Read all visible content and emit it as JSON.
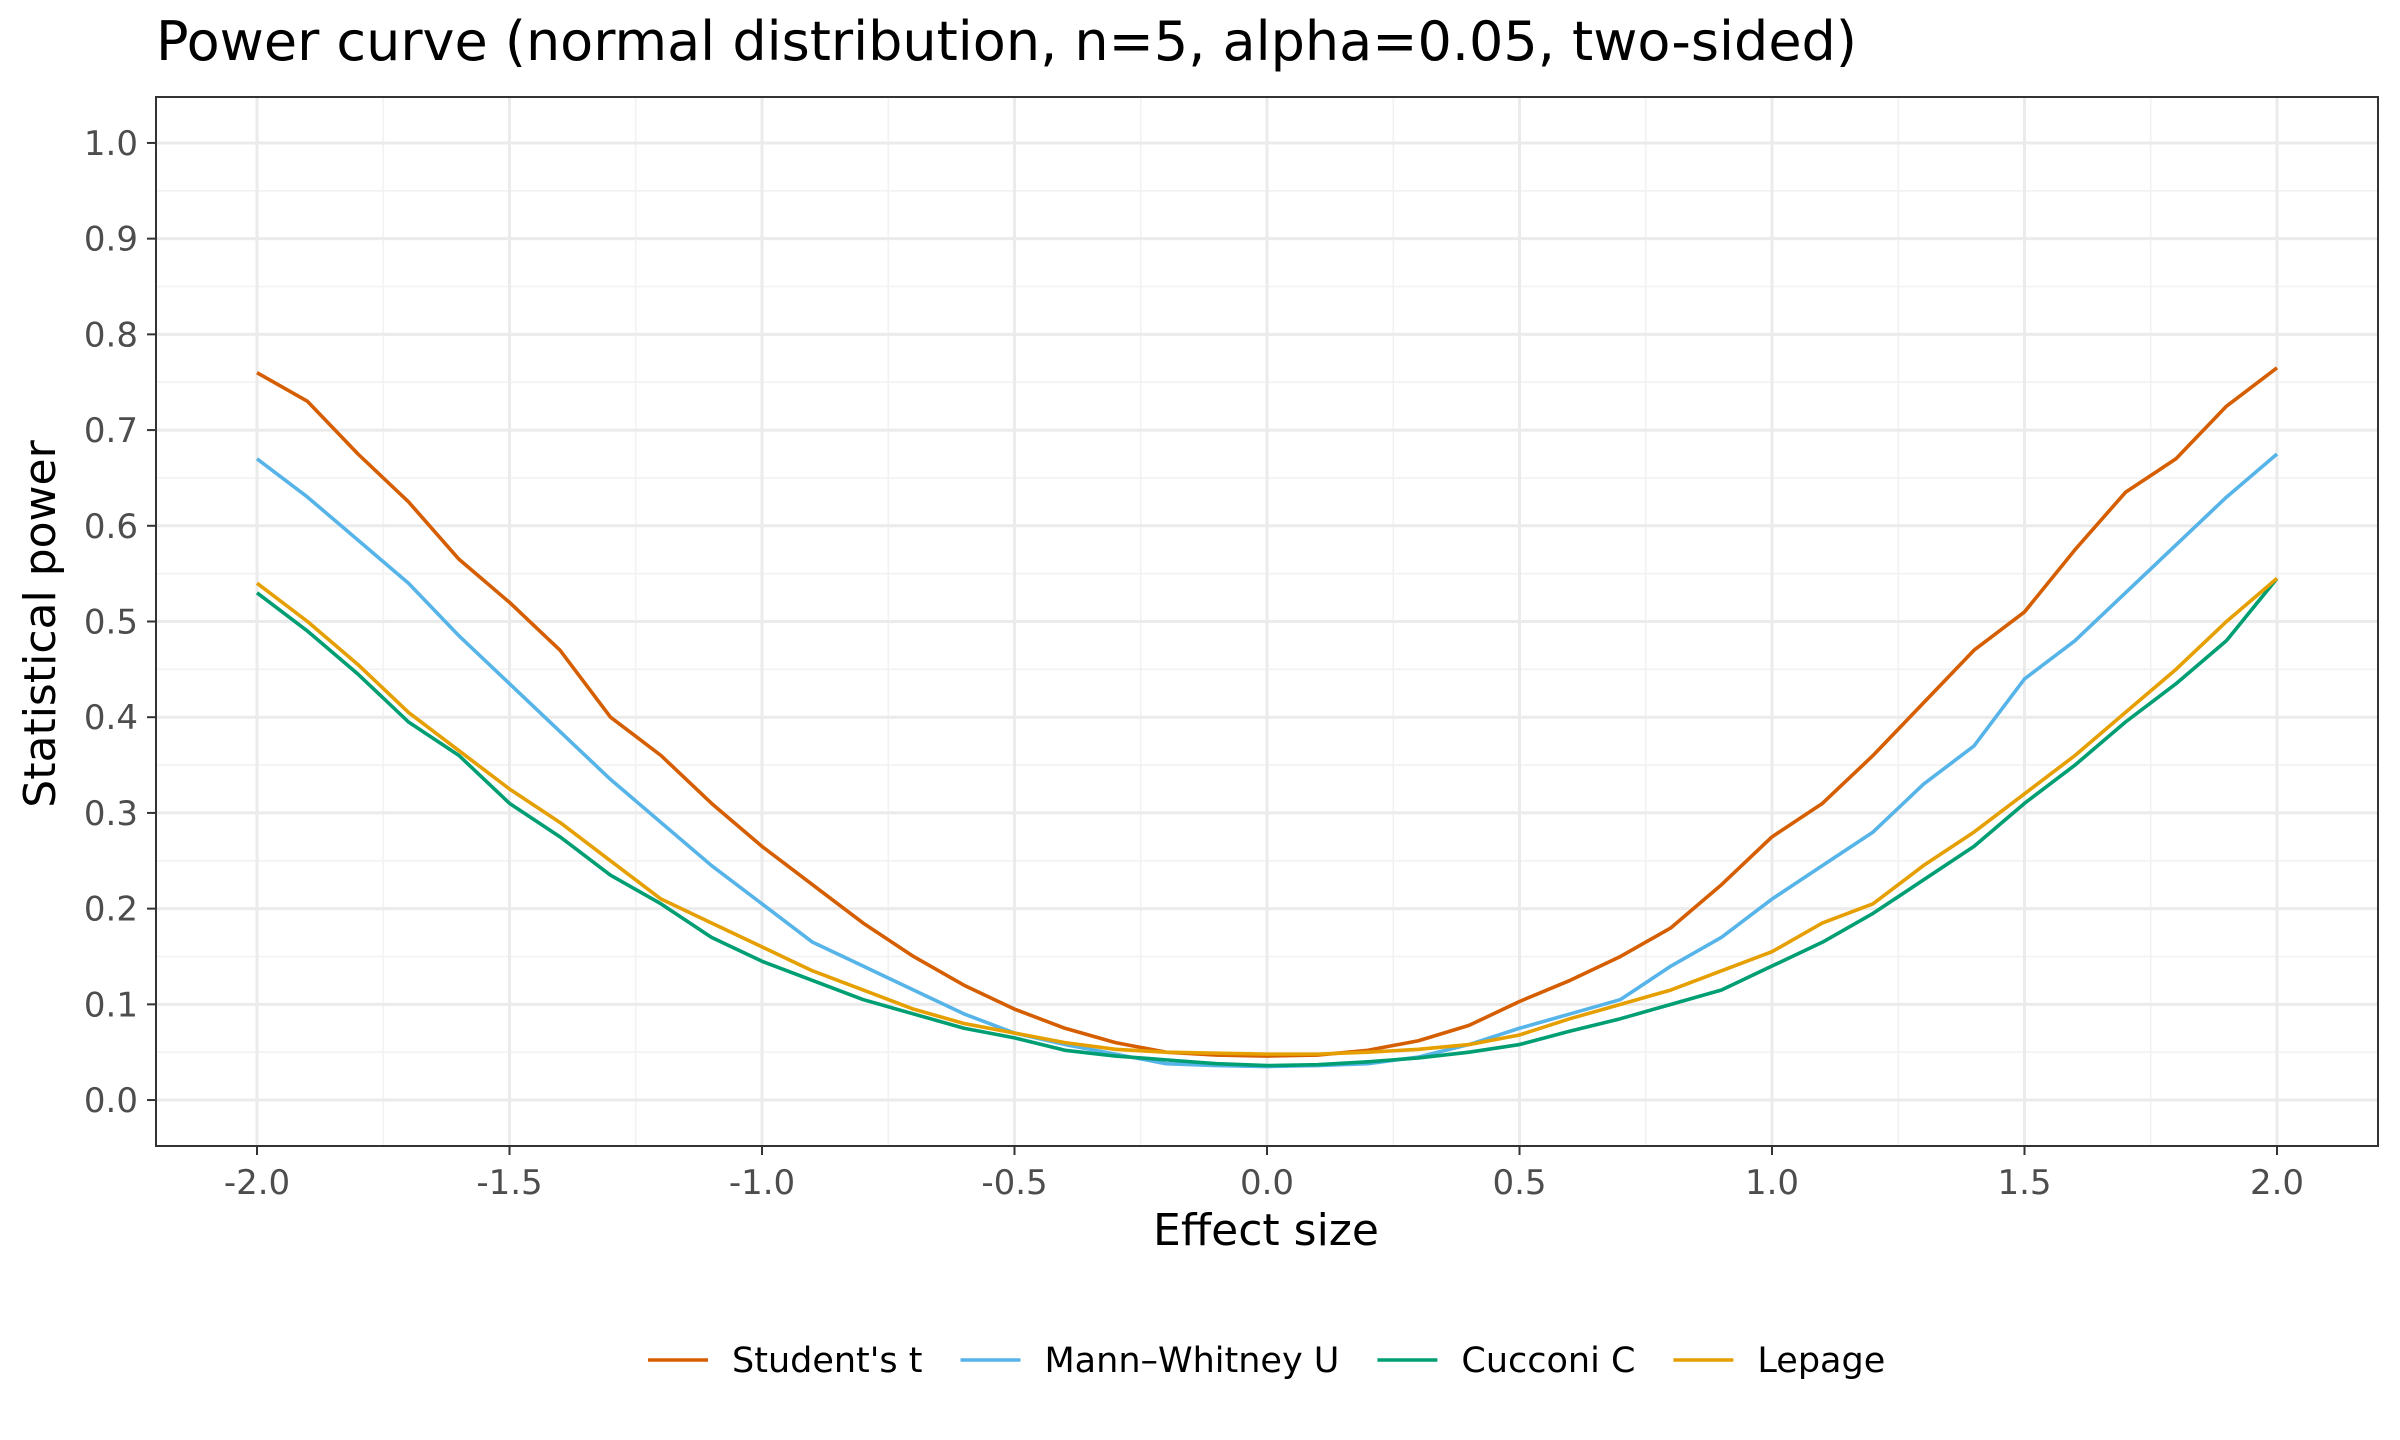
{
  "chart_data": {
    "type": "line",
    "title": "Power curve (normal distribution, n=5, alpha=0.05, two-sided)",
    "xlabel": "Effect size",
    "ylabel": "Statistical power",
    "xlim": [
      -2.2,
      2.2
    ],
    "ylim": [
      -0.048,
      1.048
    ],
    "x_ticks": [
      -2.0,
      -1.5,
      -1.0,
      -0.5,
      0.0,
      0.5,
      1.0,
      1.5,
      2.0
    ],
    "x_tick_labels": [
      "-2.0",
      "-1.5",
      "-1.0",
      "-0.5",
      "0.0",
      "0.5",
      "1.0",
      "1.5",
      "2.0"
    ],
    "y_ticks": [
      0.0,
      0.1,
      0.2,
      0.3,
      0.4,
      0.5,
      0.6,
      0.7,
      0.8,
      0.9,
      1.0
    ],
    "y_tick_labels": [
      "0.0",
      "0.1",
      "0.2",
      "0.3",
      "0.4",
      "0.5",
      "0.6",
      "0.7",
      "0.8",
      "0.9",
      "1.0"
    ],
    "grid": true,
    "legend_position": "bottom",
    "x": [
      -2.0,
      -1.9,
      -1.8,
      -1.7,
      -1.6,
      -1.5,
      -1.4,
      -1.3,
      -1.2,
      -1.1,
      -1.0,
      -0.9,
      -0.8,
      -0.7,
      -0.6,
      -0.5,
      -0.4,
      -0.3,
      -0.2,
      -0.1,
      0.0,
      0.1,
      0.2,
      0.3,
      0.4,
      0.5,
      0.6,
      0.7,
      0.8,
      0.9,
      1.0,
      1.1,
      1.2,
      1.3,
      1.4,
      1.5,
      1.6,
      1.7,
      1.8,
      1.9,
      2.0
    ],
    "series": [
      {
        "name": "Student's t",
        "color": "#D55E00",
        "values": [
          0.76,
          0.73,
          0.675,
          0.625,
          0.565,
          0.52,
          0.47,
          0.4,
          0.36,
          0.31,
          0.265,
          0.225,
          0.185,
          0.15,
          0.12,
          0.095,
          0.075,
          0.06,
          0.05,
          0.047,
          0.046,
          0.047,
          0.052,
          0.062,
          0.078,
          0.103,
          0.125,
          0.15,
          0.18,
          0.225,
          0.275,
          0.31,
          0.36,
          0.415,
          0.47,
          0.51,
          0.575,
          0.635,
          0.67,
          0.725,
          0.765
        ]
      },
      {
        "name": "Mann–Whitney U",
        "color": "#56B4E9",
        "values": [
          0.67,
          0.63,
          0.585,
          0.54,
          0.485,
          0.435,
          0.385,
          0.335,
          0.29,
          0.245,
          0.205,
          0.165,
          0.14,
          0.115,
          0.09,
          0.07,
          0.058,
          0.048,
          0.038,
          0.036,
          0.035,
          0.036,
          0.038,
          0.045,
          0.058,
          0.075,
          0.09,
          0.105,
          0.14,
          0.17,
          0.21,
          0.245,
          0.28,
          0.33,
          0.37,
          0.44,
          0.48,
          0.53,
          0.58,
          0.63,
          0.675
        ]
      },
      {
        "name": "Cucconi C",
        "color": "#009E73",
        "values": [
          0.53,
          0.49,
          0.445,
          0.395,
          0.36,
          0.31,
          0.275,
          0.235,
          0.205,
          0.17,
          0.145,
          0.125,
          0.105,
          0.09,
          0.075,
          0.065,
          0.052,
          0.046,
          0.042,
          0.038,
          0.036,
          0.037,
          0.04,
          0.044,
          0.05,
          0.058,
          0.072,
          0.085,
          0.1,
          0.115,
          0.14,
          0.165,
          0.195,
          0.23,
          0.265,
          0.31,
          0.35,
          0.395,
          0.435,
          0.48,
          0.545
        ]
      },
      {
        "name": "Lepage",
        "color": "#E69F00",
        "values": [
          0.54,
          0.5,
          0.455,
          0.405,
          0.365,
          0.325,
          0.29,
          0.25,
          0.21,
          0.185,
          0.16,
          0.135,
          0.115,
          0.095,
          0.08,
          0.07,
          0.06,
          0.053,
          0.05,
          0.049,
          0.048,
          0.048,
          0.05,
          0.053,
          0.058,
          0.068,
          0.085,
          0.1,
          0.115,
          0.135,
          0.155,
          0.185,
          0.205,
          0.245,
          0.28,
          0.32,
          0.36,
          0.405,
          0.45,
          0.5,
          0.545
        ]
      }
    ]
  }
}
